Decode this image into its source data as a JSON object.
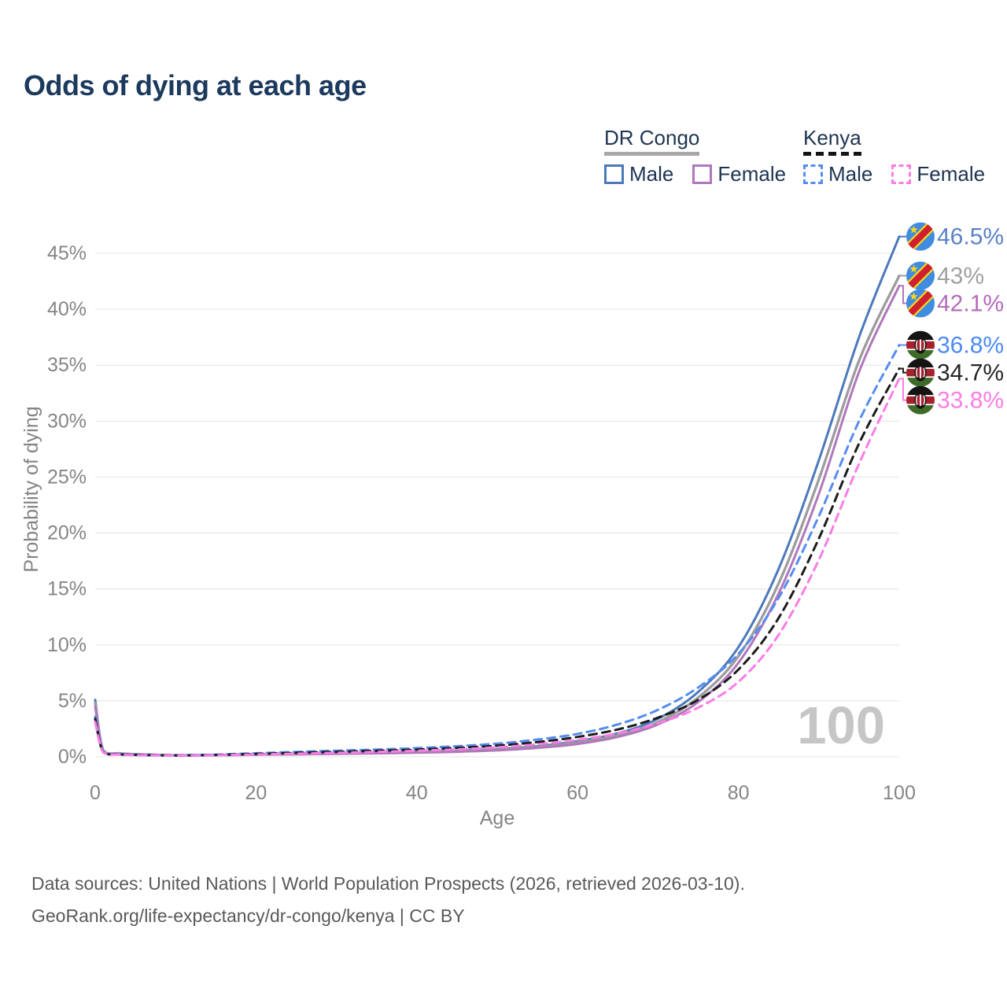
{
  "title": "Odds of dying at each age",
  "watermark": "100",
  "legend": {
    "groups": [
      {
        "country": "DR Congo",
        "line_style": "solid",
        "underline_color": "#a8a8a8",
        "items": [
          {
            "label": "Male",
            "color": "#4b79ba"
          },
          {
            "label": "Female",
            "color": "#b177bc"
          }
        ]
      },
      {
        "country": "Kenya",
        "line_style": "dashed",
        "underline_color": "#141414",
        "items": [
          {
            "label": "Male",
            "color": "#568cf2"
          },
          {
            "label": "Female",
            "color": "#fb7de6"
          }
        ]
      }
    ]
  },
  "footer": {
    "line1": "Data sources: United Nations | World Population Prospects (2026, retrieved 2026-03-10).",
    "line2": "GeoRank.org/life-expectancy/dr-congo/kenya | CC BY"
  },
  "chart_data": {
    "type": "line",
    "title": "Odds of dying at each age",
    "xlabel": "Age",
    "ylabel": "Probability of dying",
    "xlim": [
      0,
      100
    ],
    "ylim_percent": [
      0,
      47
    ],
    "x_ticks": [
      0,
      20,
      40,
      60,
      80,
      100
    ],
    "y_ticks": [
      0,
      5,
      10,
      15,
      20,
      25,
      30,
      35,
      40,
      45
    ],
    "y_tick_suffix": "%",
    "grid": "horizontal",
    "legend_position": "top-right",
    "x": [
      0,
      1,
      3,
      5,
      10,
      15,
      20,
      25,
      30,
      35,
      40,
      45,
      50,
      55,
      60,
      65,
      70,
      75,
      80,
      85,
      90,
      95,
      100
    ],
    "series": [
      {
        "name": "DR Congo Male",
        "country": "DR Congo",
        "sex": "Male",
        "flag": "dr-congo",
        "color": "#4b79ba",
        "label_color": "#5b82c8",
        "dash": "solid",
        "end_label": "46.5%",
        "end_value": 46.5,
        "values": [
          5.1,
          0.6,
          0.32,
          0.24,
          0.15,
          0.17,
          0.24,
          0.3,
          0.35,
          0.4,
          0.46,
          0.55,
          0.7,
          0.95,
          1.4,
          2.1,
          3.4,
          5.8,
          9.8,
          16.8,
          26.5,
          37.5,
          46.5
        ]
      },
      {
        "name": "DR Congo",
        "country": "DR Congo",
        "sex": "All",
        "flag": "dr-congo",
        "color": "#9c9c9c",
        "label_color": "#a0a0a0",
        "dash": "solid",
        "end_label": "43%",
        "end_value": 43.0,
        "values": [
          4.8,
          0.55,
          0.3,
          0.22,
          0.14,
          0.15,
          0.21,
          0.26,
          0.31,
          0.35,
          0.41,
          0.5,
          0.64,
          0.87,
          1.27,
          1.93,
          3.1,
          5.3,
          9.0,
          15.5,
          24.8,
          35.4,
          43.0
        ]
      },
      {
        "name": "DR Congo Female",
        "country": "DR Congo",
        "sex": "Female",
        "flag": "dr-congo",
        "color": "#b177bc",
        "label_color": "#b46cbb",
        "dash": "solid",
        "end_label": "42.1%",
        "end_value": 42.1,
        "values": [
          4.5,
          0.5,
          0.28,
          0.2,
          0.13,
          0.14,
          0.18,
          0.22,
          0.27,
          0.31,
          0.37,
          0.45,
          0.58,
          0.8,
          1.15,
          1.78,
          2.9,
          4.9,
          8.4,
          14.6,
          23.5,
          34.4,
          42.1
        ]
      },
      {
        "name": "Kenya Male",
        "country": "Kenya",
        "sex": "Male",
        "flag": "kenya",
        "color": "#568cf2",
        "label_color": "#4d8af5",
        "dash": "dashed",
        "end_label": "36.8%",
        "end_value": 36.8,
        "values": [
          3.6,
          0.45,
          0.24,
          0.18,
          0.14,
          0.2,
          0.32,
          0.44,
          0.55,
          0.65,
          0.78,
          0.95,
          1.18,
          1.55,
          2.05,
          2.9,
          4.2,
          6.2,
          9.2,
          14.2,
          21.5,
          30.0,
          36.8
        ]
      },
      {
        "name": "Kenya",
        "country": "Kenya",
        "sex": "All",
        "flag": "kenya",
        "color": "#1c1c1c",
        "label_color": "#262626",
        "dash": "dashed",
        "end_label": "34.7%",
        "end_value": 34.7,
        "values": [
          3.4,
          0.42,
          0.22,
          0.17,
          0.13,
          0.17,
          0.26,
          0.36,
          0.45,
          0.54,
          0.65,
          0.8,
          1.0,
          1.32,
          1.78,
          2.45,
          3.5,
          5.1,
          7.8,
          12.4,
          19.5,
          28.0,
          34.7
        ]
      },
      {
        "name": "Kenya Female",
        "country": "Kenya",
        "sex": "Female",
        "flag": "kenya",
        "color": "#fb7de6",
        "label_color": "#fb7de6",
        "dash": "dashed",
        "end_label": "33.8%",
        "end_value": 33.8,
        "values": [
          3.1,
          0.4,
          0.2,
          0.15,
          0.12,
          0.15,
          0.21,
          0.28,
          0.36,
          0.44,
          0.54,
          0.67,
          0.85,
          1.12,
          1.52,
          2.1,
          3.0,
          4.4,
          6.7,
          10.9,
          17.6,
          26.2,
          33.8
        ]
      }
    ]
  },
  "styles": {
    "title_color": "#1c3a5e",
    "legend_text_color": "#1e3452",
    "axis_text_color": "#858585",
    "gridline_color": "#e9e9e9",
    "watermark_color": "#c6c6c6",
    "footer_color": "#595959",
    "drc_flag_blue": "#3f8ce0",
    "drc_flag_yellow": "#f7d618",
    "drc_flag_red": "#ce2031",
    "kenya_flag_red": "#a6202e",
    "kenya_flag_green": "#3d6b28",
    "kenya_flag_black": "#141414"
  }
}
